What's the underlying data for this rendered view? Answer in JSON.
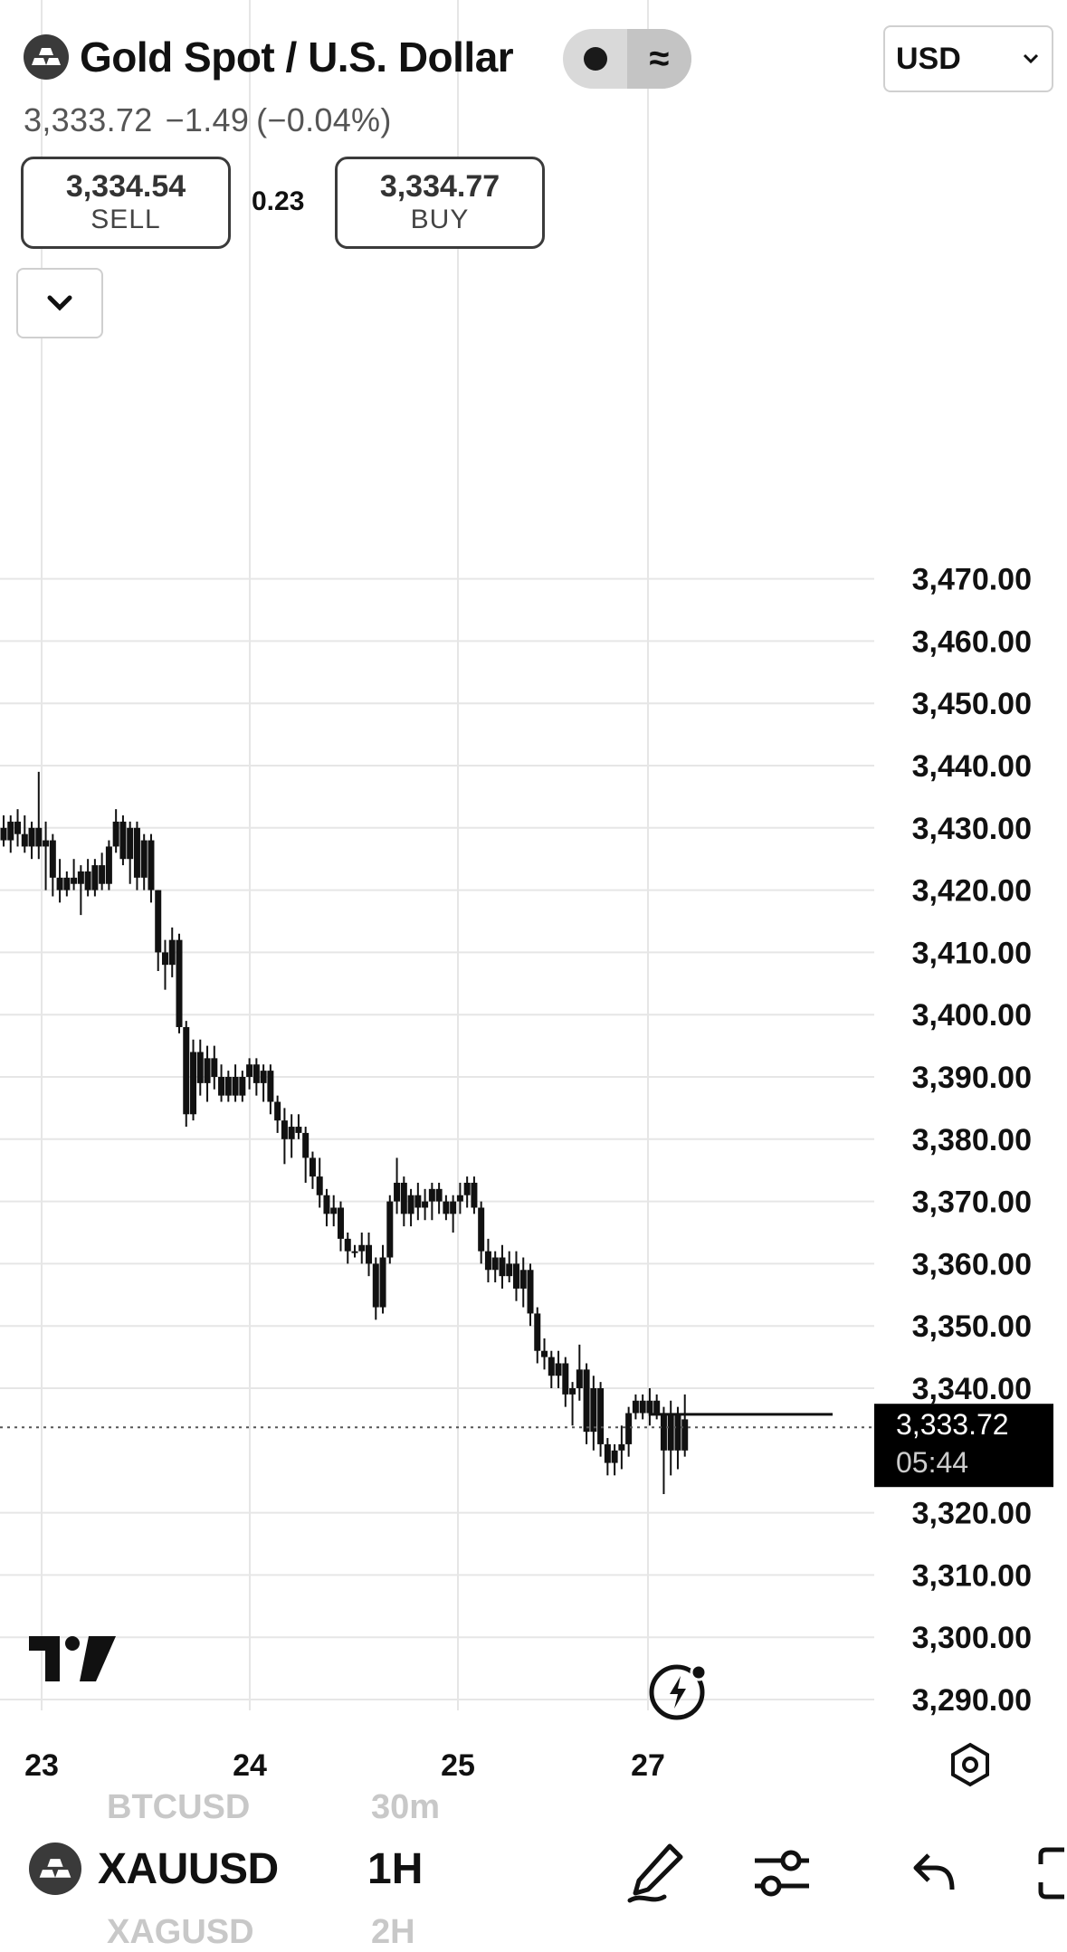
{
  "header": {
    "title": "Gold Spot / U.S. Dollar",
    "currency": "USD",
    "last_price": "3,333.72",
    "change": "−1.49",
    "change_pct": "(−0.04%)"
  },
  "trade": {
    "sell_price": "3,334.54",
    "sell_label": "SELL",
    "spread": "0.23",
    "buy_price": "3,334.77",
    "buy_label": "BUY"
  },
  "price_tag": {
    "price": "3,333.72",
    "countdown": "05:44"
  },
  "bottom_bar": {
    "symbol": "XAUUSD",
    "timeframe": "1H",
    "ghost_above_symbol": "BTCUSD",
    "ghost_above_tf": "30m",
    "ghost_below_symbol": "XAGUSD",
    "ghost_below_tf": "2H"
  },
  "icons": {
    "logo": "gold-bars-icon",
    "toggle_left": "dot-icon",
    "toggle_right": "approx-icon",
    "collapse": "chevron-down-icon",
    "branding": "tradingview-logo",
    "replay": "lightning-icon",
    "settings": "settings-hex-icon",
    "draw": "pen-icon",
    "indicators": "sliders-icon",
    "undo": "undo-icon",
    "fullscreen": "fullscreen-icon"
  },
  "colors": {
    "candle": "#111111",
    "grid": "#e6e6e6",
    "price_tag_bg": "#000000",
    "price_tag_text": "#ffffff"
  },
  "chart_data": {
    "type": "candlestick",
    "x_ticks": [
      "23",
      "24",
      "25",
      "27"
    ],
    "y_ticks": [
      "3,470.00",
      "3,460.00",
      "3,450.00",
      "3,440.00",
      "3,430.00",
      "3,420.00",
      "3,410.00",
      "3,400.00",
      "3,390.00",
      "3,380.00",
      "3,370.00",
      "3,360.00",
      "3,350.00",
      "3,340.00",
      "3,320.00",
      "3,310.00",
      "3,300.00",
      "3,290.00"
    ],
    "ylim": [
      3285,
      3475
    ],
    "current_price": 3333.72,
    "timeframe": "1H",
    "candles": [
      {
        "o": 3430,
        "h": 3432,
        "l": 3427,
        "c": 3428
      },
      {
        "o": 3428,
        "h": 3432,
        "l": 3426,
        "c": 3431
      },
      {
        "o": 3431,
        "h": 3433,
        "l": 3427,
        "c": 3429
      },
      {
        "o": 3429,
        "h": 3432,
        "l": 3426,
        "c": 3427
      },
      {
        "o": 3427,
        "h": 3431,
        "l": 3425,
        "c": 3430
      },
      {
        "o": 3430,
        "h": 3439,
        "l": 3425,
        "c": 3427
      },
      {
        "o": 3427,
        "h": 3431,
        "l": 3420,
        "c": 3428
      },
      {
        "o": 3428,
        "h": 3429,
        "l": 3419,
        "c": 3422
      },
      {
        "o": 3422,
        "h": 3425,
        "l": 3418,
        "c": 3420
      },
      {
        "o": 3420,
        "h": 3423,
        "l": 3419,
        "c": 3422
      },
      {
        "o": 3422,
        "h": 3425,
        "l": 3420,
        "c": 3421
      },
      {
        "o": 3421,
        "h": 3424,
        "l": 3416,
        "c": 3423
      },
      {
        "o": 3423,
        "h": 3425,
        "l": 3419,
        "c": 3420
      },
      {
        "o": 3420,
        "h": 3425,
        "l": 3419,
        "c": 3424
      },
      {
        "o": 3424,
        "h": 3426,
        "l": 3420,
        "c": 3421
      },
      {
        "o": 3421,
        "h": 3428,
        "l": 3420,
        "c": 3427
      },
      {
        "o": 3427,
        "h": 3433,
        "l": 3426,
        "c": 3431
      },
      {
        "o": 3431,
        "h": 3432,
        "l": 3424,
        "c": 3425
      },
      {
        "o": 3425,
        "h": 3431,
        "l": 3421,
        "c": 3430
      },
      {
        "o": 3430,
        "h": 3431,
        "l": 3420,
        "c": 3422
      },
      {
        "o": 3422,
        "h": 3429,
        "l": 3420,
        "c": 3428
      },
      {
        "o": 3428,
        "h": 3429,
        "l": 3418,
        "c": 3420
      },
      {
        "o": 3420,
        "h": 3420,
        "l": 3407,
        "c": 3410
      },
      {
        "o": 3410,
        "h": 3412,
        "l": 3404,
        "c": 3408
      },
      {
        "o": 3408,
        "h": 3414,
        "l": 3406,
        "c": 3412
      },
      {
        "o": 3412,
        "h": 3413,
        "l": 3397,
        "c": 3398
      },
      {
        "o": 3398,
        "h": 3399,
        "l": 3382,
        "c": 3384
      },
      {
        "o": 3384,
        "h": 3396,
        "l": 3383,
        "c": 3394
      },
      {
        "o": 3394,
        "h": 3396,
        "l": 3387,
        "c": 3389
      },
      {
        "o": 3389,
        "h": 3395,
        "l": 3386,
        "c": 3393
      },
      {
        "o": 3393,
        "h": 3395,
        "l": 3388,
        "c": 3390
      },
      {
        "o": 3390,
        "h": 3392,
        "l": 3386,
        "c": 3387
      },
      {
        "o": 3387,
        "h": 3391,
        "l": 3386,
        "c": 3390
      },
      {
        "o": 3390,
        "h": 3392,
        "l": 3386,
        "c": 3387
      },
      {
        "o": 3387,
        "h": 3391,
        "l": 3386,
        "c": 3390
      },
      {
        "o": 3390,
        "h": 3393,
        "l": 3388,
        "c": 3392
      },
      {
        "o": 3392,
        "h": 3393,
        "l": 3387,
        "c": 3389
      },
      {
        "o": 3389,
        "h": 3392,
        "l": 3386,
        "c": 3391
      },
      {
        "o": 3391,
        "h": 3392,
        "l": 3384,
        "c": 3386
      },
      {
        "o": 3386,
        "h": 3387,
        "l": 3381,
        "c": 3383
      },
      {
        "o": 3383,
        "h": 3385,
        "l": 3376,
        "c": 3380
      },
      {
        "o": 3380,
        "h": 3384,
        "l": 3377,
        "c": 3382
      },
      {
        "o": 3382,
        "h": 3384,
        "l": 3380,
        "c": 3381
      },
      {
        "o": 3381,
        "h": 3382,
        "l": 3373,
        "c": 3377
      },
      {
        "o": 3377,
        "h": 3378,
        "l": 3372,
        "c": 3374
      },
      {
        "o": 3374,
        "h": 3377,
        "l": 3369,
        "c": 3371
      },
      {
        "o": 3371,
        "h": 3372,
        "l": 3366,
        "c": 3368
      },
      {
        "o": 3368,
        "h": 3371,
        "l": 3366,
        "c": 3369
      },
      {
        "o": 3369,
        "h": 3370,
        "l": 3362,
        "c": 3364
      },
      {
        "o": 3364,
        "h": 3365,
        "l": 3360,
        "c": 3362
      },
      {
        "o": 3362,
        "h": 3363,
        "l": 3361,
        "c": 3362
      },
      {
        "o": 3362,
        "h": 3365,
        "l": 3360,
        "c": 3363
      },
      {
        "o": 3363,
        "h": 3365,
        "l": 3358,
        "c": 3360
      },
      {
        "o": 3360,
        "h": 3361,
        "l": 3351,
        "c": 3353
      },
      {
        "o": 3353,
        "h": 3363,
        "l": 3352,
        "c": 3361
      },
      {
        "o": 3361,
        "h": 3371,
        "l": 3360,
        "c": 3370
      },
      {
        "o": 3370,
        "h": 3377,
        "l": 3368,
        "c": 3373
      },
      {
        "o": 3373,
        "h": 3374,
        "l": 3366,
        "c": 3368
      },
      {
        "o": 3368,
        "h": 3372,
        "l": 3366,
        "c": 3371
      },
      {
        "o": 3371,
        "h": 3373,
        "l": 3367,
        "c": 3369
      },
      {
        "o": 3369,
        "h": 3372,
        "l": 3367,
        "c": 3370
      },
      {
        "o": 3370,
        "h": 3373,
        "l": 3367,
        "c": 3372
      },
      {
        "o": 3372,
        "h": 3373,
        "l": 3368,
        "c": 3370
      },
      {
        "o": 3370,
        "h": 3371,
        "l": 3367,
        "c": 3368
      },
      {
        "o": 3368,
        "h": 3371,
        "l": 3365,
        "c": 3370
      },
      {
        "o": 3370,
        "h": 3373,
        "l": 3368,
        "c": 3371
      },
      {
        "o": 3371,
        "h": 3374,
        "l": 3369,
        "c": 3373
      },
      {
        "o": 3373,
        "h": 3374,
        "l": 3368,
        "c": 3369
      },
      {
        "o": 3369,
        "h": 3370,
        "l": 3360,
        "c": 3362
      },
      {
        "o": 3362,
        "h": 3364,
        "l": 3357,
        "c": 3359
      },
      {
        "o": 3359,
        "h": 3362,
        "l": 3357,
        "c": 3361
      },
      {
        "o": 3361,
        "h": 3363,
        "l": 3356,
        "c": 3358
      },
      {
        "o": 3358,
        "h": 3362,
        "l": 3357,
        "c": 3360
      },
      {
        "o": 3360,
        "h": 3362,
        "l": 3354,
        "c": 3356
      },
      {
        "o": 3356,
        "h": 3361,
        "l": 3353,
        "c": 3359
      },
      {
        "o": 3359,
        "h": 3360,
        "l": 3350,
        "c": 3352
      },
      {
        "o": 3352,
        "h": 3353,
        "l": 3344,
        "c": 3346
      },
      {
        "o": 3346,
        "h": 3348,
        "l": 3343,
        "c": 3345
      },
      {
        "o": 3345,
        "h": 3346,
        "l": 3340,
        "c": 3342
      },
      {
        "o": 3342,
        "h": 3346,
        "l": 3340,
        "c": 3344
      },
      {
        "o": 3344,
        "h": 3345,
        "l": 3337,
        "c": 3339
      },
      {
        "o": 3339,
        "h": 3341,
        "l": 3334,
        "c": 3340
      },
      {
        "o": 3340,
        "h": 3347,
        "l": 3338,
        "c": 3343
      },
      {
        "o": 3343,
        "h": 3344,
        "l": 3331,
        "c": 3333
      },
      {
        "o": 3333,
        "h": 3342,
        "l": 3330,
        "c": 3340
      },
      {
        "o": 3340,
        "h": 3341,
        "l": 3329,
        "c": 3331
      },
      {
        "o": 3331,
        "h": 3332,
        "l": 3326,
        "c": 3328
      },
      {
        "o": 3328,
        "h": 3331,
        "l": 3326,
        "c": 3330
      },
      {
        "o": 3330,
        "h": 3334,
        "l": 3327,
        "c": 3331
      },
      {
        "o": 3331,
        "h": 3337,
        "l": 3329,
        "c": 3336
      },
      {
        "o": 3336,
        "h": 3339,
        "l": 3335,
        "c": 3338
      },
      {
        "o": 3338,
        "h": 3339,
        "l": 3335,
        "c": 3336
      },
      {
        "o": 3336,
        "h": 3340,
        "l": 3334,
        "c": 3338
      },
      {
        "o": 3338,
        "h": 3339,
        "l": 3335,
        "c": 3336
      },
      {
        "o": 3336,
        "h": 3337,
        "l": 3323,
        "c": 3330
      },
      {
        "o": 3330,
        "h": 3338,
        "l": 3326,
        "c": 3336
      },
      {
        "o": 3336,
        "h": 3337,
        "l": 3327,
        "c": 3330
      },
      {
        "o": 3330,
        "h": 3339,
        "l": 3329,
        "c": 3335
      }
    ],
    "last_close_level": 3335.8
  }
}
